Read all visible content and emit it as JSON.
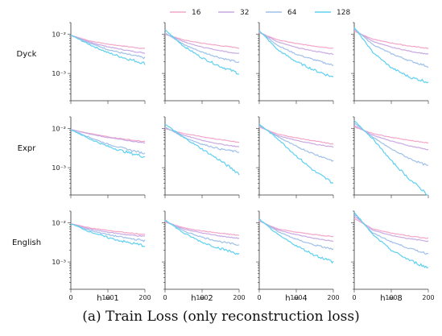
{
  "caption": "(a) Train Loss (only reconstruction loss)",
  "chart_data": {
    "type": "line",
    "y_scale": "log",
    "ylim": [
      0.0002,
      0.02
    ],
    "xlim": [
      0,
      200
    ],
    "x_ticks": [
      "0",
      "100",
      "200"
    ],
    "y_ticks": [
      {
        "value": 0.01,
        "label": "10⁻²"
      },
      {
        "value": 0.001,
        "label": "10⁻³"
      }
    ],
    "grid": false,
    "legend": {
      "placement": "top-center",
      "entries": [
        {
          "name": "16",
          "color": "#f4a6c8"
        },
        {
          "name": "32",
          "color": "#c9a9e4"
        },
        {
          "name": "64",
          "color": "#9fc0e8"
        },
        {
          "name": "128",
          "color": "#5fd0f0"
        }
      ]
    },
    "rows": [
      "Dyck",
      "Expr",
      "English"
    ],
    "columns": [
      "h = 1",
      "h = 2",
      "h = 4",
      "h = 8"
    ],
    "x": [
      0,
      50,
      100,
      150,
      200
    ],
    "panels": [
      {
        "row": "Dyck",
        "col": "h = 1",
        "series": [
          {
            "name": "16",
            "values": [
              0.0095,
              0.0068,
              0.0056,
              0.0049,
              0.0043
            ]
          },
          {
            "name": "32",
            "values": [
              0.0095,
              0.0063,
              0.0048,
              0.0039,
              0.0033
            ]
          },
          {
            "name": "64",
            "values": [
              0.0095,
              0.006,
              0.0041,
              0.0031,
              0.0025
            ]
          },
          {
            "name": "128",
            "values": [
              0.0095,
              0.0055,
              0.0034,
              0.0024,
              0.0018
            ]
          }
        ]
      },
      {
        "row": "Dyck",
        "col": "h = 2",
        "series": [
          {
            "name": "16",
            "values": [
              0.01,
              0.0072,
              0.0059,
              0.0051,
              0.0045
            ]
          },
          {
            "name": "32",
            "values": [
              0.0105,
              0.0065,
              0.0047,
              0.0038,
              0.0032
            ]
          },
          {
            "name": "64",
            "values": [
              0.011,
              0.0055,
              0.0035,
              0.0025,
              0.0019
            ]
          },
          {
            "name": "128",
            "values": [
              0.013,
              0.005,
              0.0025,
              0.0015,
              0.001
            ]
          }
        ]
      },
      {
        "row": "Dyck",
        "col": "h = 4",
        "series": [
          {
            "name": "16",
            "values": [
              0.011,
              0.0072,
              0.0058,
              0.005,
              0.0044
            ]
          },
          {
            "name": "32",
            "values": [
              0.0115,
              0.0064,
              0.0046,
              0.0037,
              0.0031
            ]
          },
          {
            "name": "64",
            "values": [
              0.012,
              0.0052,
              0.0031,
              0.0022,
              0.0016
            ]
          },
          {
            "name": "128",
            "values": [
              0.0125,
              0.004,
              0.002,
              0.0012,
              0.0008
            ]
          }
        ]
      },
      {
        "row": "Dyck",
        "col": "h = 8",
        "series": [
          {
            "name": "16",
            "values": [
              0.012,
              0.0075,
              0.006,
              0.005,
              0.0044
            ]
          },
          {
            "name": "32",
            "values": [
              0.013,
              0.0066,
              0.0047,
              0.0037,
              0.0031
            ]
          },
          {
            "name": "64",
            "values": [
              0.014,
              0.0055,
              0.0032,
              0.0021,
              0.0015
            ]
          },
          {
            "name": "128",
            "values": [
              0.015,
              0.0035,
              0.0014,
              0.0008,
              0.0006
            ]
          }
        ]
      },
      {
        "row": "Expr",
        "col": "h = 1",
        "series": [
          {
            "name": "16",
            "values": [
              0.0095,
              0.0075,
              0.0062,
              0.0053,
              0.0046
            ]
          },
          {
            "name": "32",
            "values": [
              0.0095,
              0.0073,
              0.0059,
              0.005,
              0.0043
            ]
          },
          {
            "name": "64",
            "values": [
              0.0095,
              0.006,
              0.004,
              0.003,
              0.0023
            ]
          },
          {
            "name": "128",
            "values": [
              0.0095,
              0.0055,
              0.0035,
              0.0025,
              0.0019
            ]
          }
        ]
      },
      {
        "row": "Expr",
        "col": "h = 2",
        "series": [
          {
            "name": "16",
            "values": [
              0.01,
              0.0075,
              0.0062,
              0.0052,
              0.0045
            ]
          },
          {
            "name": "32",
            "values": [
              0.0105,
              0.0068,
              0.005,
              0.004,
              0.0034
            ]
          },
          {
            "name": "64",
            "values": [
              0.011,
              0.006,
              0.004,
              0.003,
              0.0025
            ]
          },
          {
            "name": "128",
            "values": [
              0.013,
              0.006,
              0.003,
              0.0015,
              0.0007
            ]
          }
        ]
      },
      {
        "row": "Expr",
        "col": "h = 4",
        "series": [
          {
            "name": "16",
            "values": [
              0.011,
              0.0072,
              0.0058,
              0.0048,
              0.004
            ]
          },
          {
            "name": "32",
            "values": [
              0.0115,
              0.0066,
              0.005,
              0.004,
              0.0034
            ]
          },
          {
            "name": "64",
            "values": [
              0.012,
              0.0062,
              0.0035,
              0.0022,
              0.0015
            ]
          },
          {
            "name": "128",
            "values": [
              0.013,
              0.0055,
              0.002,
              0.0008,
              0.0004
            ]
          }
        ]
      },
      {
        "row": "Expr",
        "col": "h = 8",
        "series": [
          {
            "name": "16",
            "values": [
              0.011,
              0.0075,
              0.006,
              0.005,
              0.0043
            ]
          },
          {
            "name": "32",
            "values": [
              0.012,
              0.0068,
              0.0048,
              0.0036,
              0.0029
            ]
          },
          {
            "name": "64",
            "values": [
              0.014,
              0.006,
              0.003,
              0.0017,
              0.0011
            ]
          },
          {
            "name": "128",
            "values": [
              0.016,
              0.0055,
              0.0015,
              0.0005,
              0.0002
            ]
          }
        ]
      },
      {
        "row": "English",
        "col": "h = 1",
        "series": [
          {
            "name": "16",
            "values": [
              0.0095,
              0.0075,
              0.0064,
              0.0056,
              0.005
            ]
          },
          {
            "name": "32",
            "values": [
              0.0095,
              0.007,
              0.0058,
              0.005,
              0.0045
            ]
          },
          {
            "name": "64",
            "values": [
              0.0095,
              0.0065,
              0.005,
              0.0041,
              0.0035
            ]
          },
          {
            "name": "128",
            "values": [
              0.0095,
              0.006,
              0.0042,
              0.0032,
              0.0026
            ]
          }
        ]
      },
      {
        "row": "English",
        "col": "h = 2",
        "series": [
          {
            "name": "16",
            "values": [
              0.0105,
              0.0075,
              0.0062,
              0.0054,
              0.0048
            ]
          },
          {
            "name": "32",
            "values": [
              0.011,
              0.007,
              0.0055,
              0.0046,
              0.004
            ]
          },
          {
            "name": "64",
            "values": [
              0.0115,
              0.0062,
              0.0043,
              0.0033,
              0.0027
            ]
          },
          {
            "name": "128",
            "values": [
              0.012,
              0.0055,
              0.0032,
              0.0022,
              0.0016
            ]
          }
        ]
      },
      {
        "row": "English",
        "col": "h = 4",
        "series": [
          {
            "name": "16",
            "values": [
              0.011,
              0.007,
              0.0058,
              0.005,
              0.0045
            ]
          },
          {
            "name": "32",
            "values": [
              0.0115,
              0.0066,
              0.005,
              0.004,
              0.0034
            ]
          },
          {
            "name": "64",
            "values": [
              0.012,
              0.006,
              0.0038,
              0.0027,
              0.0021
            ]
          },
          {
            "name": "128",
            "values": [
              0.0125,
              0.005,
              0.0026,
              0.0015,
              0.001
            ]
          }
        ]
      },
      {
        "row": "English",
        "col": "h = 8",
        "series": [
          {
            "name": "16",
            "values": [
              0.013,
              0.007,
              0.0055,
              0.0046,
              0.004
            ]
          },
          {
            "name": "32",
            "values": [
              0.015,
              0.0065,
              0.0048,
              0.0039,
              0.0034
            ]
          },
          {
            "name": "64",
            "values": [
              0.017,
              0.0055,
              0.0033,
              0.0022,
              0.0016
            ]
          },
          {
            "name": "128",
            "values": [
              0.019,
              0.005,
              0.002,
              0.0011,
              0.0007
            ]
          }
        ]
      }
    ]
  }
}
